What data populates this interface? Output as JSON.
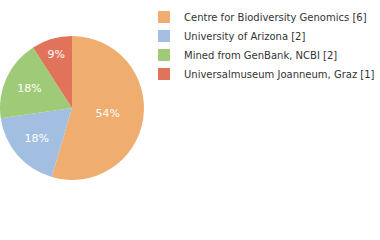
{
  "chart_data": {
    "type": "pie",
    "categories": [
      "Centre for Biodiversity Genomics [6]",
      "University of Arizona [2]",
      "Mined from GenBank, NCBI [2]",
      "Universalmuseum Joanneum, Graz [1]"
    ],
    "values": [
      54,
      18,
      18,
      9
    ],
    "value_labels": [
      "54%",
      "18%",
      "18%",
      "9%"
    ],
    "colors": [
      "#f0ad70",
      "#a2bee0",
      "#9fcb79",
      "#e0735a"
    ],
    "data_labels": true,
    "legend": "top right"
  }
}
